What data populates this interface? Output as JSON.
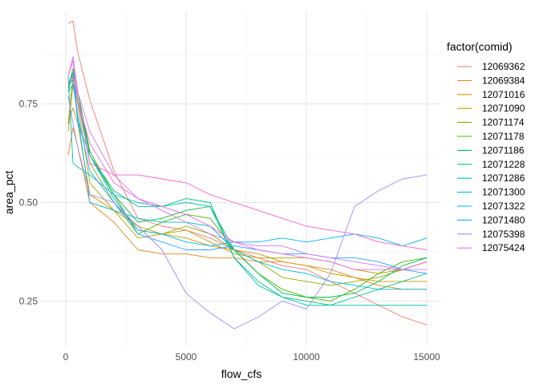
{
  "chart_data": {
    "type": "line",
    "xlabel": "flow_cfs",
    "ylabel": "area_pct",
    "xlim": [
      -1000,
      15600
    ],
    "ylim": [
      0.135,
      0.985
    ],
    "x_ticks": [
      0,
      5000,
      10000,
      15000
    ],
    "x_tick_labels": [
      "0",
      "5000",
      "10000",
      "15000"
    ],
    "y_ticks": [
      0.25,
      0.5,
      0.75
    ],
    "y_tick_labels": [
      "0.25",
      "0.50",
      "0.75"
    ],
    "x_minor": [
      2500,
      7500,
      12500
    ],
    "y_minor": [
      0.375,
      0.625,
      0.875
    ],
    "grid": true,
    "legend": {
      "title": "factor(comid)",
      "placement": "right"
    },
    "series": [
      {
        "name": "12069362",
        "color": "#F8766D",
        "points": [
          [
            100,
            0.955
          ],
          [
            300,
            0.96
          ],
          [
            500,
            0.88
          ],
          [
            1000,
            0.76
          ],
          [
            2000,
            0.58
          ],
          [
            3000,
            0.46
          ],
          [
            4000,
            0.44
          ],
          [
            5000,
            0.43
          ],
          [
            6000,
            0.41
          ],
          [
            7000,
            0.38
          ],
          [
            8000,
            0.36
          ],
          [
            9000,
            0.34
          ],
          [
            10000,
            0.33
          ],
          [
            11000,
            0.3
          ],
          [
            12000,
            0.27
          ],
          [
            13000,
            0.24
          ],
          [
            14000,
            0.21
          ],
          [
            15000,
            0.19
          ]
        ]
      },
      {
        "name": "12069384",
        "color": "#E7851E",
        "points": [
          [
            100,
            0.62
          ],
          [
            300,
            0.69
          ],
          [
            500,
            0.64
          ],
          [
            1000,
            0.5
          ],
          [
            2000,
            0.45
          ],
          [
            3000,
            0.38
          ],
          [
            4000,
            0.37
          ],
          [
            5000,
            0.37
          ],
          [
            6000,
            0.36
          ],
          [
            7000,
            0.36
          ],
          [
            8000,
            0.35
          ],
          [
            9000,
            0.35
          ],
          [
            10000,
            0.34
          ],
          [
            11000,
            0.33
          ],
          [
            12000,
            0.31
          ],
          [
            13000,
            0.29
          ],
          [
            14000,
            0.28
          ],
          [
            15000,
            0.28
          ]
        ]
      },
      {
        "name": "12071016",
        "color": "#D09400",
        "points": [
          [
            100,
            0.7
          ],
          [
            300,
            0.74
          ],
          [
            500,
            0.7
          ],
          [
            1000,
            0.52
          ],
          [
            2000,
            0.48
          ],
          [
            3000,
            0.44
          ],
          [
            4000,
            0.42
          ],
          [
            5000,
            0.41
          ],
          [
            6000,
            0.39
          ],
          [
            7000,
            0.38
          ],
          [
            8000,
            0.37
          ],
          [
            9000,
            0.35
          ],
          [
            10000,
            0.34
          ],
          [
            11000,
            0.32
          ],
          [
            12000,
            0.31
          ],
          [
            13000,
            0.3
          ],
          [
            14000,
            0.3
          ],
          [
            15000,
            0.3
          ]
        ]
      },
      {
        "name": "12071090",
        "color": "#B2A100",
        "points": [
          [
            100,
            0.68
          ],
          [
            300,
            0.8
          ],
          [
            500,
            0.75
          ],
          [
            1000,
            0.55
          ],
          [
            2000,
            0.48
          ],
          [
            3000,
            0.41
          ],
          [
            4000,
            0.42
          ],
          [
            5000,
            0.43
          ],
          [
            6000,
            0.4
          ],
          [
            7000,
            0.37
          ],
          [
            8000,
            0.36
          ],
          [
            9000,
            0.36
          ],
          [
            10000,
            0.36
          ],
          [
            11000,
            0.35
          ],
          [
            12000,
            0.33
          ],
          [
            13000,
            0.32
          ],
          [
            14000,
            0.33
          ],
          [
            15000,
            0.35
          ]
        ]
      },
      {
        "name": "12071174",
        "color": "#89AC00",
        "points": [
          [
            100,
            0.7
          ],
          [
            300,
            0.82
          ],
          [
            500,
            0.76
          ],
          [
            1000,
            0.6
          ],
          [
            2000,
            0.5
          ],
          [
            3000,
            0.43
          ],
          [
            4000,
            0.42
          ],
          [
            5000,
            0.44
          ],
          [
            6000,
            0.42
          ],
          [
            7000,
            0.38
          ],
          [
            8000,
            0.35
          ],
          [
            9000,
            0.31
          ],
          [
            10000,
            0.3
          ],
          [
            11000,
            0.29
          ],
          [
            12000,
            0.3
          ],
          [
            13000,
            0.31
          ],
          [
            14000,
            0.33
          ],
          [
            15000,
            0.35
          ]
        ]
      },
      {
        "name": "12071178",
        "color": "#45B500",
        "points": [
          [
            100,
            0.79
          ],
          [
            300,
            0.84
          ],
          [
            500,
            0.78
          ],
          [
            1000,
            0.63
          ],
          [
            2000,
            0.52
          ],
          [
            3000,
            0.42
          ],
          [
            4000,
            0.45
          ],
          [
            5000,
            0.47
          ],
          [
            6000,
            0.46
          ],
          [
            7000,
            0.38
          ],
          [
            8000,
            0.32
          ],
          [
            9000,
            0.28
          ],
          [
            10000,
            0.26
          ],
          [
            11000,
            0.25
          ],
          [
            12000,
            0.28
          ],
          [
            13000,
            0.32
          ],
          [
            14000,
            0.35
          ],
          [
            15000,
            0.36
          ]
        ]
      },
      {
        "name": "12071186",
        "color": "#00BC51",
        "points": [
          [
            100,
            0.78
          ],
          [
            300,
            0.83
          ],
          [
            500,
            0.78
          ],
          [
            1000,
            0.62
          ],
          [
            2000,
            0.52
          ],
          [
            3000,
            0.45
          ],
          [
            4000,
            0.46
          ],
          [
            5000,
            0.48
          ],
          [
            6000,
            0.49
          ],
          [
            7000,
            0.38
          ],
          [
            8000,
            0.32
          ],
          [
            9000,
            0.27
          ],
          [
            10000,
            0.26
          ],
          [
            11000,
            0.26
          ],
          [
            12000,
            0.27
          ],
          [
            13000,
            0.3
          ],
          [
            14000,
            0.34
          ],
          [
            15000,
            0.36
          ]
        ]
      },
      {
        "name": "12071228",
        "color": "#00C087",
        "points": [
          [
            100,
            0.8
          ],
          [
            300,
            0.81
          ],
          [
            500,
            0.76
          ],
          [
            1000,
            0.62
          ],
          [
            2000,
            0.53
          ],
          [
            3000,
            0.49
          ],
          [
            4000,
            0.49
          ],
          [
            5000,
            0.51
          ],
          [
            6000,
            0.5
          ],
          [
            7000,
            0.36
          ],
          [
            8000,
            0.3
          ],
          [
            9000,
            0.26
          ],
          [
            10000,
            0.25
          ],
          [
            11000,
            0.24
          ],
          [
            12000,
            0.26
          ],
          [
            13000,
            0.28
          ],
          [
            14000,
            0.3
          ],
          [
            15000,
            0.32
          ]
        ]
      },
      {
        "name": "12071286",
        "color": "#00C0B2",
        "points": [
          [
            100,
            0.82
          ],
          [
            300,
            0.6
          ],
          [
            500,
            0.59
          ],
          [
            1000,
            0.57
          ],
          [
            2000,
            0.52
          ],
          [
            3000,
            0.5
          ],
          [
            4000,
            0.49
          ],
          [
            5000,
            0.5
          ],
          [
            6000,
            0.49
          ],
          [
            7000,
            0.36
          ],
          [
            8000,
            0.29
          ],
          [
            9000,
            0.26
          ],
          [
            10000,
            0.24
          ],
          [
            11000,
            0.24
          ],
          [
            12000,
            0.24
          ],
          [
            13000,
            0.24
          ],
          [
            14000,
            0.24
          ],
          [
            15000,
            0.24
          ]
        ]
      },
      {
        "name": "12071300",
        "color": "#00BCD6",
        "points": [
          [
            100,
            0.8
          ],
          [
            300,
            0.82
          ],
          [
            500,
            0.72
          ],
          [
            1000,
            0.5
          ],
          [
            2000,
            0.48
          ],
          [
            3000,
            0.46
          ],
          [
            4000,
            0.45
          ],
          [
            5000,
            0.45
          ],
          [
            6000,
            0.44
          ],
          [
            7000,
            0.38
          ],
          [
            8000,
            0.35
          ],
          [
            9000,
            0.33
          ],
          [
            10000,
            0.32
          ],
          [
            11000,
            0.3
          ],
          [
            12000,
            0.29
          ],
          [
            13000,
            0.28
          ],
          [
            14000,
            0.28
          ],
          [
            15000,
            0.28
          ]
        ]
      },
      {
        "name": "12071322",
        "color": "#00B3F2",
        "points": [
          [
            100,
            0.8
          ],
          [
            300,
            0.83
          ],
          [
            500,
            0.7
          ],
          [
            1000,
            0.62
          ],
          [
            2000,
            0.51
          ],
          [
            3000,
            0.43
          ],
          [
            4000,
            0.42
          ],
          [
            5000,
            0.4
          ],
          [
            6000,
            0.39
          ],
          [
            7000,
            0.4
          ],
          [
            8000,
            0.4
          ],
          [
            9000,
            0.41
          ],
          [
            10000,
            0.4
          ],
          [
            11000,
            0.41
          ],
          [
            12000,
            0.42
          ],
          [
            13000,
            0.41
          ],
          [
            14000,
            0.39
          ],
          [
            15000,
            0.41
          ]
        ]
      },
      {
        "name": "12071480",
        "color": "#29A3FF",
        "points": [
          [
            100,
            0.78
          ],
          [
            300,
            0.8
          ],
          [
            500,
            0.72
          ],
          [
            1000,
            0.58
          ],
          [
            2000,
            0.5
          ],
          [
            3000,
            0.42
          ],
          [
            4000,
            0.4
          ],
          [
            5000,
            0.38
          ],
          [
            6000,
            0.38
          ],
          [
            7000,
            0.39
          ],
          [
            8000,
            0.38
          ],
          [
            9000,
            0.37
          ],
          [
            10000,
            0.37
          ],
          [
            11000,
            0.36
          ],
          [
            12000,
            0.36
          ],
          [
            13000,
            0.35
          ],
          [
            14000,
            0.33
          ],
          [
            15000,
            0.32
          ]
        ]
      },
      {
        "name": "12075398",
        "color": "#9C8DFF",
        "points": [
          [
            100,
            0.77
          ],
          [
            300,
            0.7
          ],
          [
            500,
            0.64
          ],
          [
            1000,
            0.52
          ],
          [
            2000,
            0.5
          ],
          [
            3000,
            0.44
          ],
          [
            4000,
            0.38
          ],
          [
            5000,
            0.27
          ],
          [
            6000,
            0.22
          ],
          [
            7000,
            0.18
          ],
          [
            8000,
            0.21
          ],
          [
            9000,
            0.25
          ],
          [
            10000,
            0.23
          ],
          [
            11000,
            0.32
          ],
          [
            12000,
            0.49
          ],
          [
            13000,
            0.53
          ],
          [
            14000,
            0.56
          ],
          [
            15000,
            0.57
          ]
        ]
      },
      {
        "name": "12075424",
        "color": "#D277FF",
        "points": [
          [
            100,
            0.82
          ],
          [
            300,
            0.87
          ],
          [
            500,
            0.78
          ],
          [
            1000,
            0.68
          ],
          [
            2000,
            0.57
          ],
          [
            3000,
            0.51
          ],
          [
            4000,
            0.48
          ],
          [
            5000,
            0.45
          ],
          [
            6000,
            0.42
          ],
          [
            7000,
            0.4
          ],
          [
            8000,
            0.39
          ],
          [
            9000,
            0.39
          ],
          [
            10000,
            0.37
          ],
          [
            11000,
            0.36
          ],
          [
            12000,
            0.35
          ],
          [
            13000,
            0.34
          ],
          [
            14000,
            0.33
          ],
          [
            15000,
            0.33
          ]
        ]
      },
      {
        "name": "",
        "color": "#F365E6",
        "points": [
          [
            100,
            0.82
          ],
          [
            300,
            0.86
          ],
          [
            500,
            0.76
          ],
          [
            1000,
            0.65
          ],
          [
            2000,
            0.55
          ],
          [
            3000,
            0.51
          ],
          [
            4000,
            0.49
          ],
          [
            5000,
            0.47
          ],
          [
            6000,
            0.44
          ],
          [
            7000,
            0.4
          ],
          [
            8000,
            0.38
          ],
          [
            9000,
            0.37
          ],
          [
            10000,
            0.36
          ],
          [
            11000,
            0.35
          ],
          [
            12000,
            0.33
          ],
          [
            13000,
            0.33
          ],
          [
            14000,
            0.33
          ],
          [
            15000,
            0.35
          ]
        ]
      },
      {
        "name": "",
        "color": "#FC61C3",
        "points": [
          [
            100,
            0.8
          ],
          [
            300,
            0.82
          ],
          [
            500,
            0.76
          ],
          [
            1000,
            0.6
          ],
          [
            2000,
            0.57
          ],
          [
            3000,
            0.57
          ],
          [
            4000,
            0.56
          ],
          [
            5000,
            0.55
          ],
          [
            6000,
            0.52
          ],
          [
            7000,
            0.5
          ],
          [
            8000,
            0.48
          ],
          [
            9000,
            0.46
          ],
          [
            10000,
            0.44
          ],
          [
            11000,
            0.43
          ],
          [
            12000,
            0.42
          ],
          [
            13000,
            0.4
          ],
          [
            14000,
            0.39
          ],
          [
            15000,
            0.38
          ]
        ]
      }
    ]
  }
}
